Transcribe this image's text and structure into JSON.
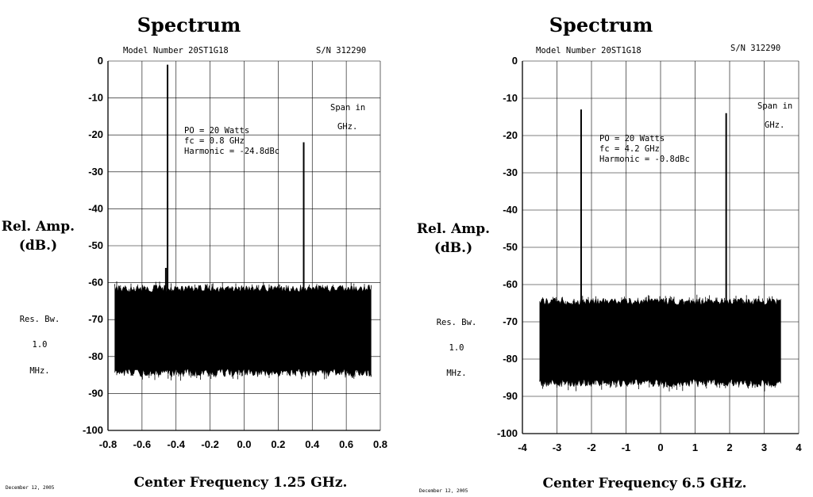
{
  "chart_data": [
    {
      "type": "line",
      "title": "Spectrum",
      "model_number": "Model Number 20ST1G18",
      "serial": "S/N 312290",
      "annotation": [
        "PO = 20 Watts",
        "fc = 0.8 GHz",
        "Harmonic = -24.8dBc"
      ],
      "span_note": [
        "Span in",
        "GHz."
      ],
      "ylabel": [
        "Rel. Amp.",
        "(dB.)"
      ],
      "res_bw": [
        "Res. Bw.",
        "1.0",
        "MHz."
      ],
      "xlabel": "Center Frequency 1.25 GHz.",
      "date": "December 12, 2005",
      "xlim": [
        -0.8,
        0.8
      ],
      "ylim": [
        -100,
        0
      ],
      "x_ticks": [
        "-0.8",
        "-0.6",
        "-0.4",
        "-0.2",
        "0.0",
        "0.2",
        "0.4",
        "0.6",
        "0.8"
      ],
      "x_tick_values": [
        -0.8,
        -0.6,
        -0.4,
        -0.2,
        0.0,
        0.2,
        0.4,
        0.6,
        0.8
      ],
      "y_ticks": [
        "0",
        "-10",
        "-20",
        "-30",
        "-40",
        "-50",
        "-60",
        "-70",
        "-80",
        "-90",
        "-100"
      ],
      "y_tick_values": [
        0,
        -10,
        -20,
        -30,
        -40,
        -50,
        -60,
        -70,
        -80,
        -90,
        -100
      ],
      "grid": true,
      "noise_floor": {
        "x_range": [
          -0.76,
          0.75
        ],
        "upper_db": -61,
        "lower_db": -84
      },
      "peaks": [
        {
          "x": -0.45,
          "y": -1
        },
        {
          "x": -0.45,
          "y": -38
        },
        {
          "x": -0.46,
          "y": -56
        },
        {
          "x": 0.35,
          "y": -22
        }
      ]
    },
    {
      "type": "line",
      "title": "Spectrum",
      "model_number": "Model Number 20ST1G18",
      "serial": "S/N 312290",
      "annotation": [
        "PO = 20 Watts",
        "fc = 4.2 GHz",
        "Harmonic = -0.8dBc"
      ],
      "span_note": [
        "Span in",
        "GHz."
      ],
      "ylabel": [
        "Rel. Amp.",
        "(dB.)"
      ],
      "res_bw": [
        "Res. Bw.",
        "1.0",
        "MHz."
      ],
      "xlabel": "Center Frequency 6.5 GHz.",
      "date": "December 12, 2005",
      "xlim": [
        -4,
        4
      ],
      "ylim": [
        -100,
        0
      ],
      "x_ticks": [
        "-4",
        "-3",
        "-2",
        "-1",
        "0",
        "1",
        "2",
        "3",
        "4"
      ],
      "x_tick_values": [
        -4,
        -3,
        -2,
        -1,
        0,
        1,
        2,
        3,
        4
      ],
      "y_ticks": [
        "0",
        "-10",
        "-20",
        "-30",
        "-40",
        "-50",
        "-60",
        "-70",
        "-80",
        "-90",
        "-100"
      ],
      "y_tick_values": [
        0,
        -10,
        -20,
        -30,
        -40,
        -50,
        -60,
        -70,
        -80,
        -90,
        -100
      ],
      "grid": true,
      "noise_floor": {
        "x_range": [
          -3.5,
          3.5
        ],
        "upper_db": -64,
        "lower_db": -86
      },
      "peaks": [
        {
          "x": -2.3,
          "y": -13
        },
        {
          "x": 1.9,
          "y": -14
        }
      ]
    }
  ]
}
